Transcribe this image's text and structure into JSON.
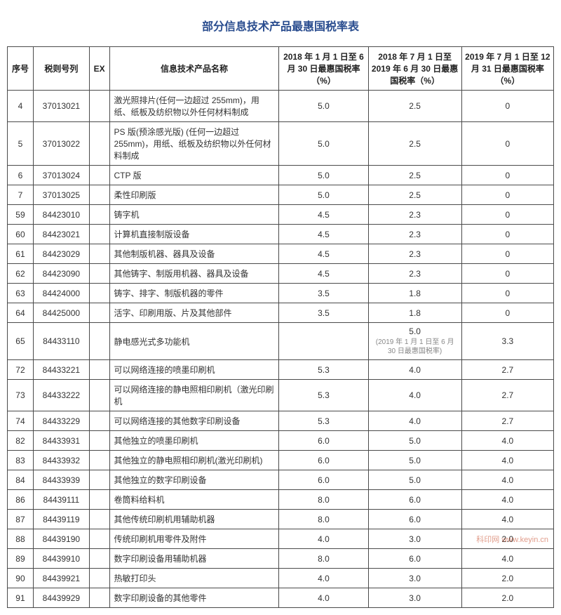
{
  "title": "部分信息技术产品最惠国税率表",
  "columns": {
    "seq": "序号",
    "code": "税则号列",
    "ex": "EX",
    "name": "信息技术产品名称",
    "rate1": "2018 年 1 月 1 日至 6 月 30 日最惠国税率（%）",
    "rate2": "2018 年 7 月 1 日至2019 年 6 月 30 日最惠国税率（%）",
    "rate3": "2019 年 7 月 1 日至 12 月 31 日最惠国税率（%）"
  },
  "rows": [
    {
      "seq": "4",
      "code": "37013021",
      "ex": "",
      "name": "激光照排片(任何一边超过 255mm)，用纸、纸板及纺织物以外任何材料制成",
      "r1": "5.0",
      "r2": "2.5",
      "r2note": "",
      "r3": "0"
    },
    {
      "seq": "5",
      "code": "37013022",
      "ex": "",
      "name": "PS 版(预涂感光版) (任何一边超过255mm)，用纸、纸板及纺织物以外任何材料制成",
      "r1": "5.0",
      "r2": "2.5",
      "r2note": "",
      "r3": "0"
    },
    {
      "seq": "6",
      "code": "37013024",
      "ex": "",
      "name": "CTP 版",
      "r1": "5.0",
      "r2": "2.5",
      "r2note": "",
      "r3": "0"
    },
    {
      "seq": "7",
      "code": "37013025",
      "ex": "",
      "name": "柔性印刷版",
      "r1": "5.0",
      "r2": "2.5",
      "r2note": "",
      "r3": "0"
    },
    {
      "seq": "59",
      "code": "84423010",
      "ex": "",
      "name": "铸字机",
      "r1": "4.5",
      "r2": "2.3",
      "r2note": "",
      "r3": "0"
    },
    {
      "seq": "60",
      "code": "84423021",
      "ex": "",
      "name": "计算机直接制版设备",
      "r1": "4.5",
      "r2": "2.3",
      "r2note": "",
      "r3": "0"
    },
    {
      "seq": "61",
      "code": "84423029",
      "ex": "",
      "name": "其他制版机器、器具及设备",
      "r1": "4.5",
      "r2": "2.3",
      "r2note": "",
      "r3": "0"
    },
    {
      "seq": "62",
      "code": "84423090",
      "ex": "",
      "name": "其他铸字、制版用机器、器具及设备",
      "r1": "4.5",
      "r2": "2.3",
      "r2note": "",
      "r3": "0"
    },
    {
      "seq": "63",
      "code": "84424000",
      "ex": "",
      "name": "铸字、排字、制版机器的零件",
      "r1": "3.5",
      "r2": "1.8",
      "r2note": "",
      "r3": "0"
    },
    {
      "seq": "64",
      "code": "84425000",
      "ex": "",
      "name": "活字、印刷用版、片及其他部件",
      "r1": "3.5",
      "r2": "1.8",
      "r2note": "",
      "r3": "0"
    },
    {
      "seq": "65",
      "code": "84433110",
      "ex": "",
      "name": "静电感光式多功能机",
      "r1": "",
      "r2": "5.0",
      "r2note": "(2019 年 1 月 1 日至 6 月 30 日最惠国税率)",
      "r3": "3.3"
    },
    {
      "seq": "72",
      "code": "84433221",
      "ex": "",
      "name": "可以网络连接的喷墨印刷机",
      "r1": "5.3",
      "r2": "4.0",
      "r2note": "",
      "r3": "2.7"
    },
    {
      "seq": "73",
      "code": "84433222",
      "ex": "",
      "name": "可以网络连接的静电照相印刷机（激光印刷机",
      "r1": "5.3",
      "r2": "4.0",
      "r2note": "",
      "r3": "2.7"
    },
    {
      "seq": "74",
      "code": "84433229",
      "ex": "",
      "name": "可以网络连接的其他数字印刷设备",
      "r1": "5.3",
      "r2": "4.0",
      "r2note": "",
      "r3": "2.7"
    },
    {
      "seq": "82",
      "code": "84433931",
      "ex": "",
      "name": "其他独立的喷墨印刷机",
      "r1": "6.0",
      "r2": "5.0",
      "r2note": "",
      "r3": "4.0"
    },
    {
      "seq": "83",
      "code": "84433932",
      "ex": "",
      "name": "其他独立的静电照相印刷机(激光印刷机)",
      "r1": "6.0",
      "r2": "5.0",
      "r2note": "",
      "r3": "4.0"
    },
    {
      "seq": "84",
      "code": "84433939",
      "ex": "",
      "name": "其他独立的数字印刷设备",
      "r1": "6.0",
      "r2": "5.0",
      "r2note": "",
      "r3": "4.0"
    },
    {
      "seq": "86",
      "code": "84439111",
      "ex": "",
      "name": "卷筒料给料机",
      "r1": "8.0",
      "r2": "6.0",
      "r2note": "",
      "r3": "4.0"
    },
    {
      "seq": "87",
      "code": "84439119",
      "ex": "",
      "name": "其他传统印刷机用辅助机器",
      "r1": "8.0",
      "r2": "6.0",
      "r2note": "",
      "r3": "4.0"
    },
    {
      "seq": "88",
      "code": "84439190",
      "ex": "",
      "name": "传统印刷机用零件及附件",
      "r1": "4.0",
      "r2": "3.0",
      "r2note": "",
      "r3": "2.0"
    },
    {
      "seq": "89",
      "code": "84439910",
      "ex": "",
      "name": "数字印刷设备用辅助机器",
      "r1": "8.0",
      "r2": "6.0",
      "r2note": "",
      "r3": "4.0"
    },
    {
      "seq": "90",
      "code": "84439921",
      "ex": "",
      "name": "热敏打印头",
      "r1": "4.0",
      "r2": "3.0",
      "r2note": "",
      "r3": "2.0"
    },
    {
      "seq": "91",
      "code": "84439929",
      "ex": "",
      "name": "数字印刷设备的其他零件",
      "r1": "4.0",
      "r2": "3.0",
      "r2note": "",
      "r3": "2.0"
    }
  ],
  "style": {
    "title_color": "#2a4d8f",
    "border_color": "#4a4a4a",
    "font_size_body": 12,
    "font_size_title": 16,
    "note_color": "#888888",
    "background": "#ffffff"
  },
  "watermark": "科印网 www.keyin.cn"
}
